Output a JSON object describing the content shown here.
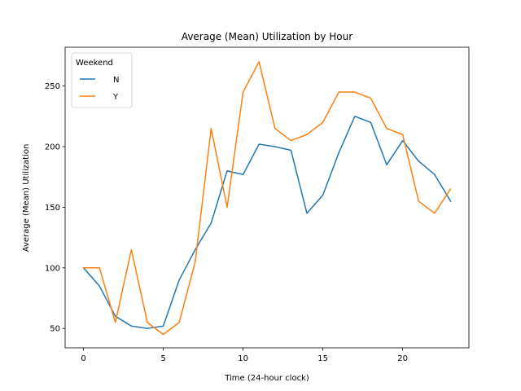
{
  "chart_data": {
    "type": "line",
    "title": "Average (Mean) Utilization by Hour",
    "xlabel": "Time (24-hour clock)",
    "ylabel": "Average (Mean) Utilization",
    "xlim": [
      -1.15,
      24.15
    ],
    "ylim": [
      34,
      282
    ],
    "xticks": [
      0,
      5,
      10,
      15,
      20
    ],
    "yticks": [
      50,
      100,
      150,
      200,
      250
    ],
    "grid": false,
    "legend": {
      "title": "Weekend",
      "placement": "top-left",
      "entries": [
        "N",
        "Y"
      ]
    },
    "x": [
      0,
      1,
      2,
      3,
      4,
      5,
      6,
      7,
      8,
      9,
      10,
      11,
      12,
      13,
      14,
      15,
      16,
      17,
      18,
      19,
      20,
      21,
      22,
      23
    ],
    "series": [
      {
        "name": "N",
        "color": "#1f77b4",
        "values": [
          100,
          85,
          60,
          52,
          50,
          52,
          90,
          115,
          137,
          180,
          177,
          202,
          200,
          197,
          145,
          160,
          195,
          225,
          220,
          185,
          205,
          188,
          177,
          155
        ]
      },
      {
        "name": "Y",
        "color": "#ff7f0e",
        "values": [
          100,
          100,
          55,
          115,
          55,
          45,
          55,
          105,
          215,
          150,
          245,
          270,
          215,
          205,
          210,
          220,
          245,
          245,
          240,
          215,
          210,
          155,
          145,
          165
        ]
      }
    ]
  }
}
